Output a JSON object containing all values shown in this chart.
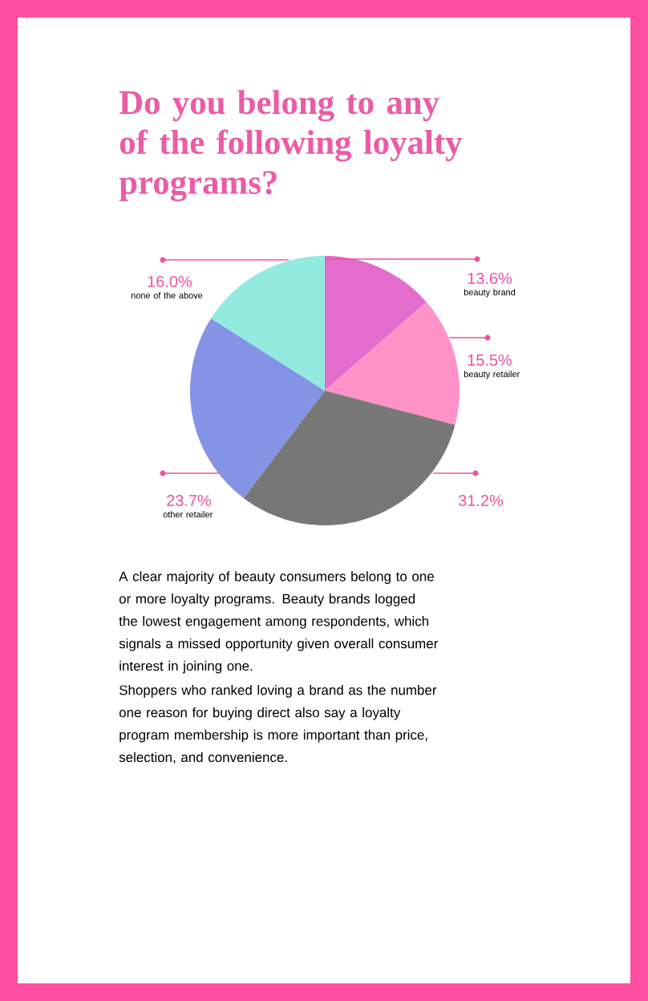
{
  "chart_data": {
    "type": "pie",
    "title": "Do you belong to any of the following loyalty programs?",
    "categories": [
      "beauty brand",
      "beauty retailer",
      null,
      "other retailer",
      "none of the above"
    ],
    "values": [
      13.6,
      15.5,
      31.2,
      23.7,
      16.0
    ],
    "value_labels": [
      "13.6%",
      "15.5%",
      "31.2%",
      "23.7%",
      "16.0%"
    ],
    "colors": [
      "#e46ccc",
      "#ff93c8",
      "#777777",
      "#8493e4",
      "#93eadf"
    ],
    "annotations": [
      "A clear majority of beauty consumers belong to one or more loyalty programs. Beauty brands logged the lowest engagement among respondents, which signals a missed opportunity given overall consumer interest in joining one.",
      "Shoppers who ranked loving a brand as the number one reason for buying direct also say a loyalty program membership is more important than price, selection, and convenience."
    ]
  }
}
